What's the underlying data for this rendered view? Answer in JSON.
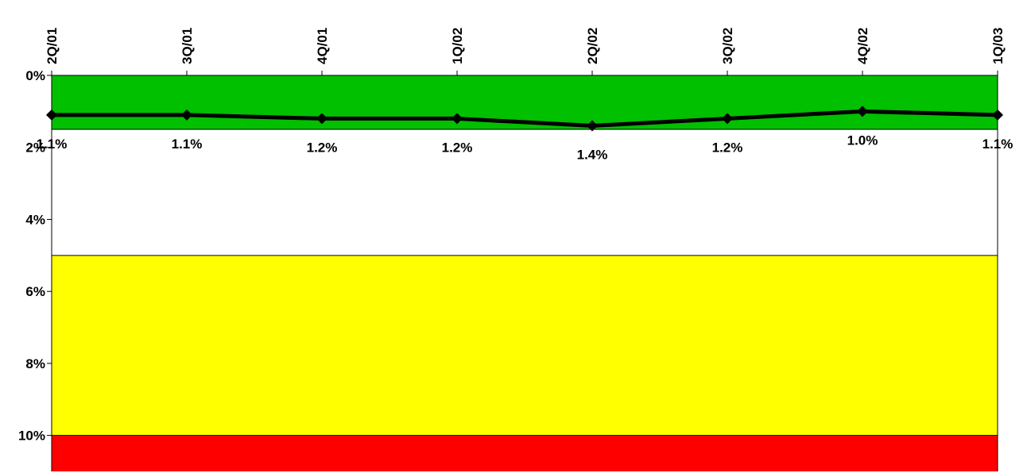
{
  "chart_data": {
    "type": "line",
    "categories": [
      "2Q/01",
      "3Q/01",
      "4Q/01",
      "1Q/02",
      "2Q/02",
      "3Q/02",
      "4Q/02",
      "1Q/03"
    ],
    "series": [
      {
        "values": [
          1.1,
          1.1,
          1.2,
          1.2,
          1.4,
          1.2,
          1.0,
          1.1
        ],
        "labels": [
          "1.1%",
          "1.1%",
          "1.2%",
          "1.2%",
          "1.4%",
          "1.2%",
          "1.0%",
          "1.1%"
        ],
        "color": "#000000"
      }
    ],
    "ylim": [
      0,
      11
    ],
    "y_reversed": true,
    "y_ticks": [
      0,
      2,
      4,
      6,
      8,
      10
    ],
    "y_tick_labels": [
      "0%",
      "2%",
      "4%",
      "6%",
      "8%",
      "10%"
    ],
    "x_axis_position": "top",
    "bands": [
      {
        "from": 0,
        "to": 1.5,
        "color": "#00c000"
      },
      {
        "from": 1.5,
        "to": 5,
        "color": "#ffffff"
      },
      {
        "from": 5,
        "to": 10,
        "color": "#ffff00"
      },
      {
        "from": 10,
        "to": 11,
        "color": "#ff0000"
      }
    ]
  }
}
